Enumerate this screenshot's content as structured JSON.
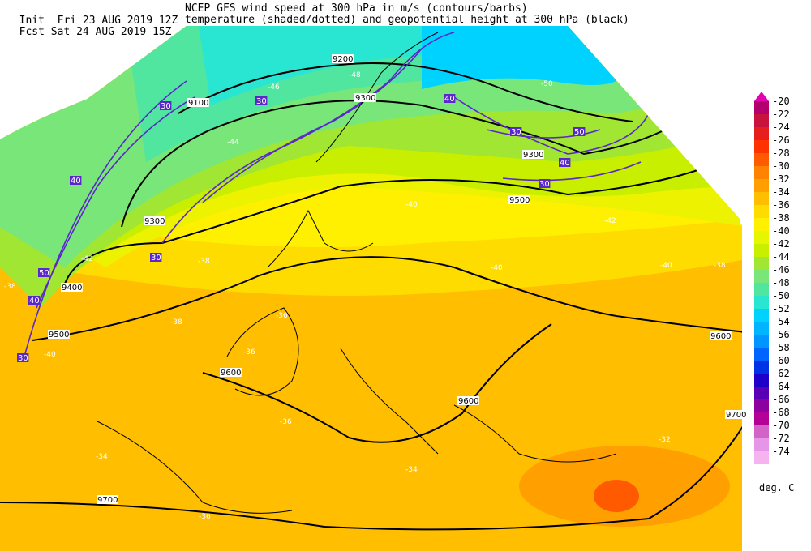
{
  "header": {
    "init_prefix": "Init",
    "init_time": "Fri 23 AUG 2019 12Z",
    "fcst_prefix": "Fcst",
    "fcst_time": "Sat 24 AUG 2019 15Z",
    "title_line1": "NCEP GFS wind speed at 300 hPa in m/s (contours/barbs)",
    "title_line2": "temperature (shaded/dotted) and geopotential height at 300 hPa (black)"
  },
  "colorbar": {
    "unit": "deg. C",
    "levels": [
      "-20",
      "-22",
      "-24",
      "-26",
      "-28",
      "-30",
      "-32",
      "-34",
      "-36",
      "-38",
      "-40",
      "-42",
      "-44",
      "-46",
      "-48",
      "-50",
      "-52",
      "-54",
      "-56",
      "-58",
      "-60",
      "-62",
      "-64",
      "-66",
      "-68",
      "-70",
      "-72",
      "-74"
    ],
    "colors": [
      "#b4006e",
      "#c8143c",
      "#e61e1e",
      "#ff3200",
      "#ff5a00",
      "#ff8200",
      "#ffa000",
      "#ffbe00",
      "#ffdc00",
      "#fff000",
      "#e6f500",
      "#c8ee00",
      "#a0e632",
      "#78e678",
      "#50e6a0",
      "#28e6d2",
      "#00d2ff",
      "#00b4ff",
      "#0096ff",
      "#0064ff",
      "#0032e6",
      "#1e00c8",
      "#5a00b4",
      "#8c00a0",
      "#b40096",
      "#d264c8",
      "#e696e6",
      "#f5b4f0"
    ]
  },
  "map_labels": {
    "heights": [
      {
        "text": "9100"
      },
      {
        "text": "9200"
      },
      {
        "text": "9300"
      },
      {
        "text": "9300"
      },
      {
        "text": "9300"
      },
      {
        "text": "9400"
      },
      {
        "text": "9500"
      },
      {
        "text": "9500"
      },
      {
        "text": "9600"
      },
      {
        "text": "9600"
      },
      {
        "text": "9600"
      },
      {
        "text": "9700"
      },
      {
        "text": "9700"
      }
    ],
    "temps": [
      {
        "text": "-50"
      },
      {
        "text": "-48"
      },
      {
        "text": "-46"
      },
      {
        "text": "-44"
      },
      {
        "text": "-42"
      },
      {
        "text": "-42"
      },
      {
        "text": "-40"
      },
      {
        "text": "-40"
      },
      {
        "text": "-40"
      },
      {
        "text": "-38"
      },
      {
        "text": "-38"
      },
      {
        "text": "-38"
      },
      {
        "text": "-36"
      },
      {
        "text": "-36"
      },
      {
        "text": "-36"
      },
      {
        "text": "-34"
      },
      {
        "text": "-34"
      },
      {
        "text": "-32"
      },
      {
        "text": "-38"
      },
      {
        "text": "-40"
      },
      {
        "text": "-36"
      }
    ],
    "winds": [
      {
        "text": "30"
      },
      {
        "text": "30"
      },
      {
        "text": "40"
      },
      {
        "text": "40"
      },
      {
        "text": "50"
      },
      {
        "text": "30"
      },
      {
        "text": "40"
      },
      {
        "text": "30"
      },
      {
        "text": "50"
      },
      {
        "text": "30"
      },
      {
        "text": "40"
      },
      {
        "text": "30"
      }
    ]
  }
}
